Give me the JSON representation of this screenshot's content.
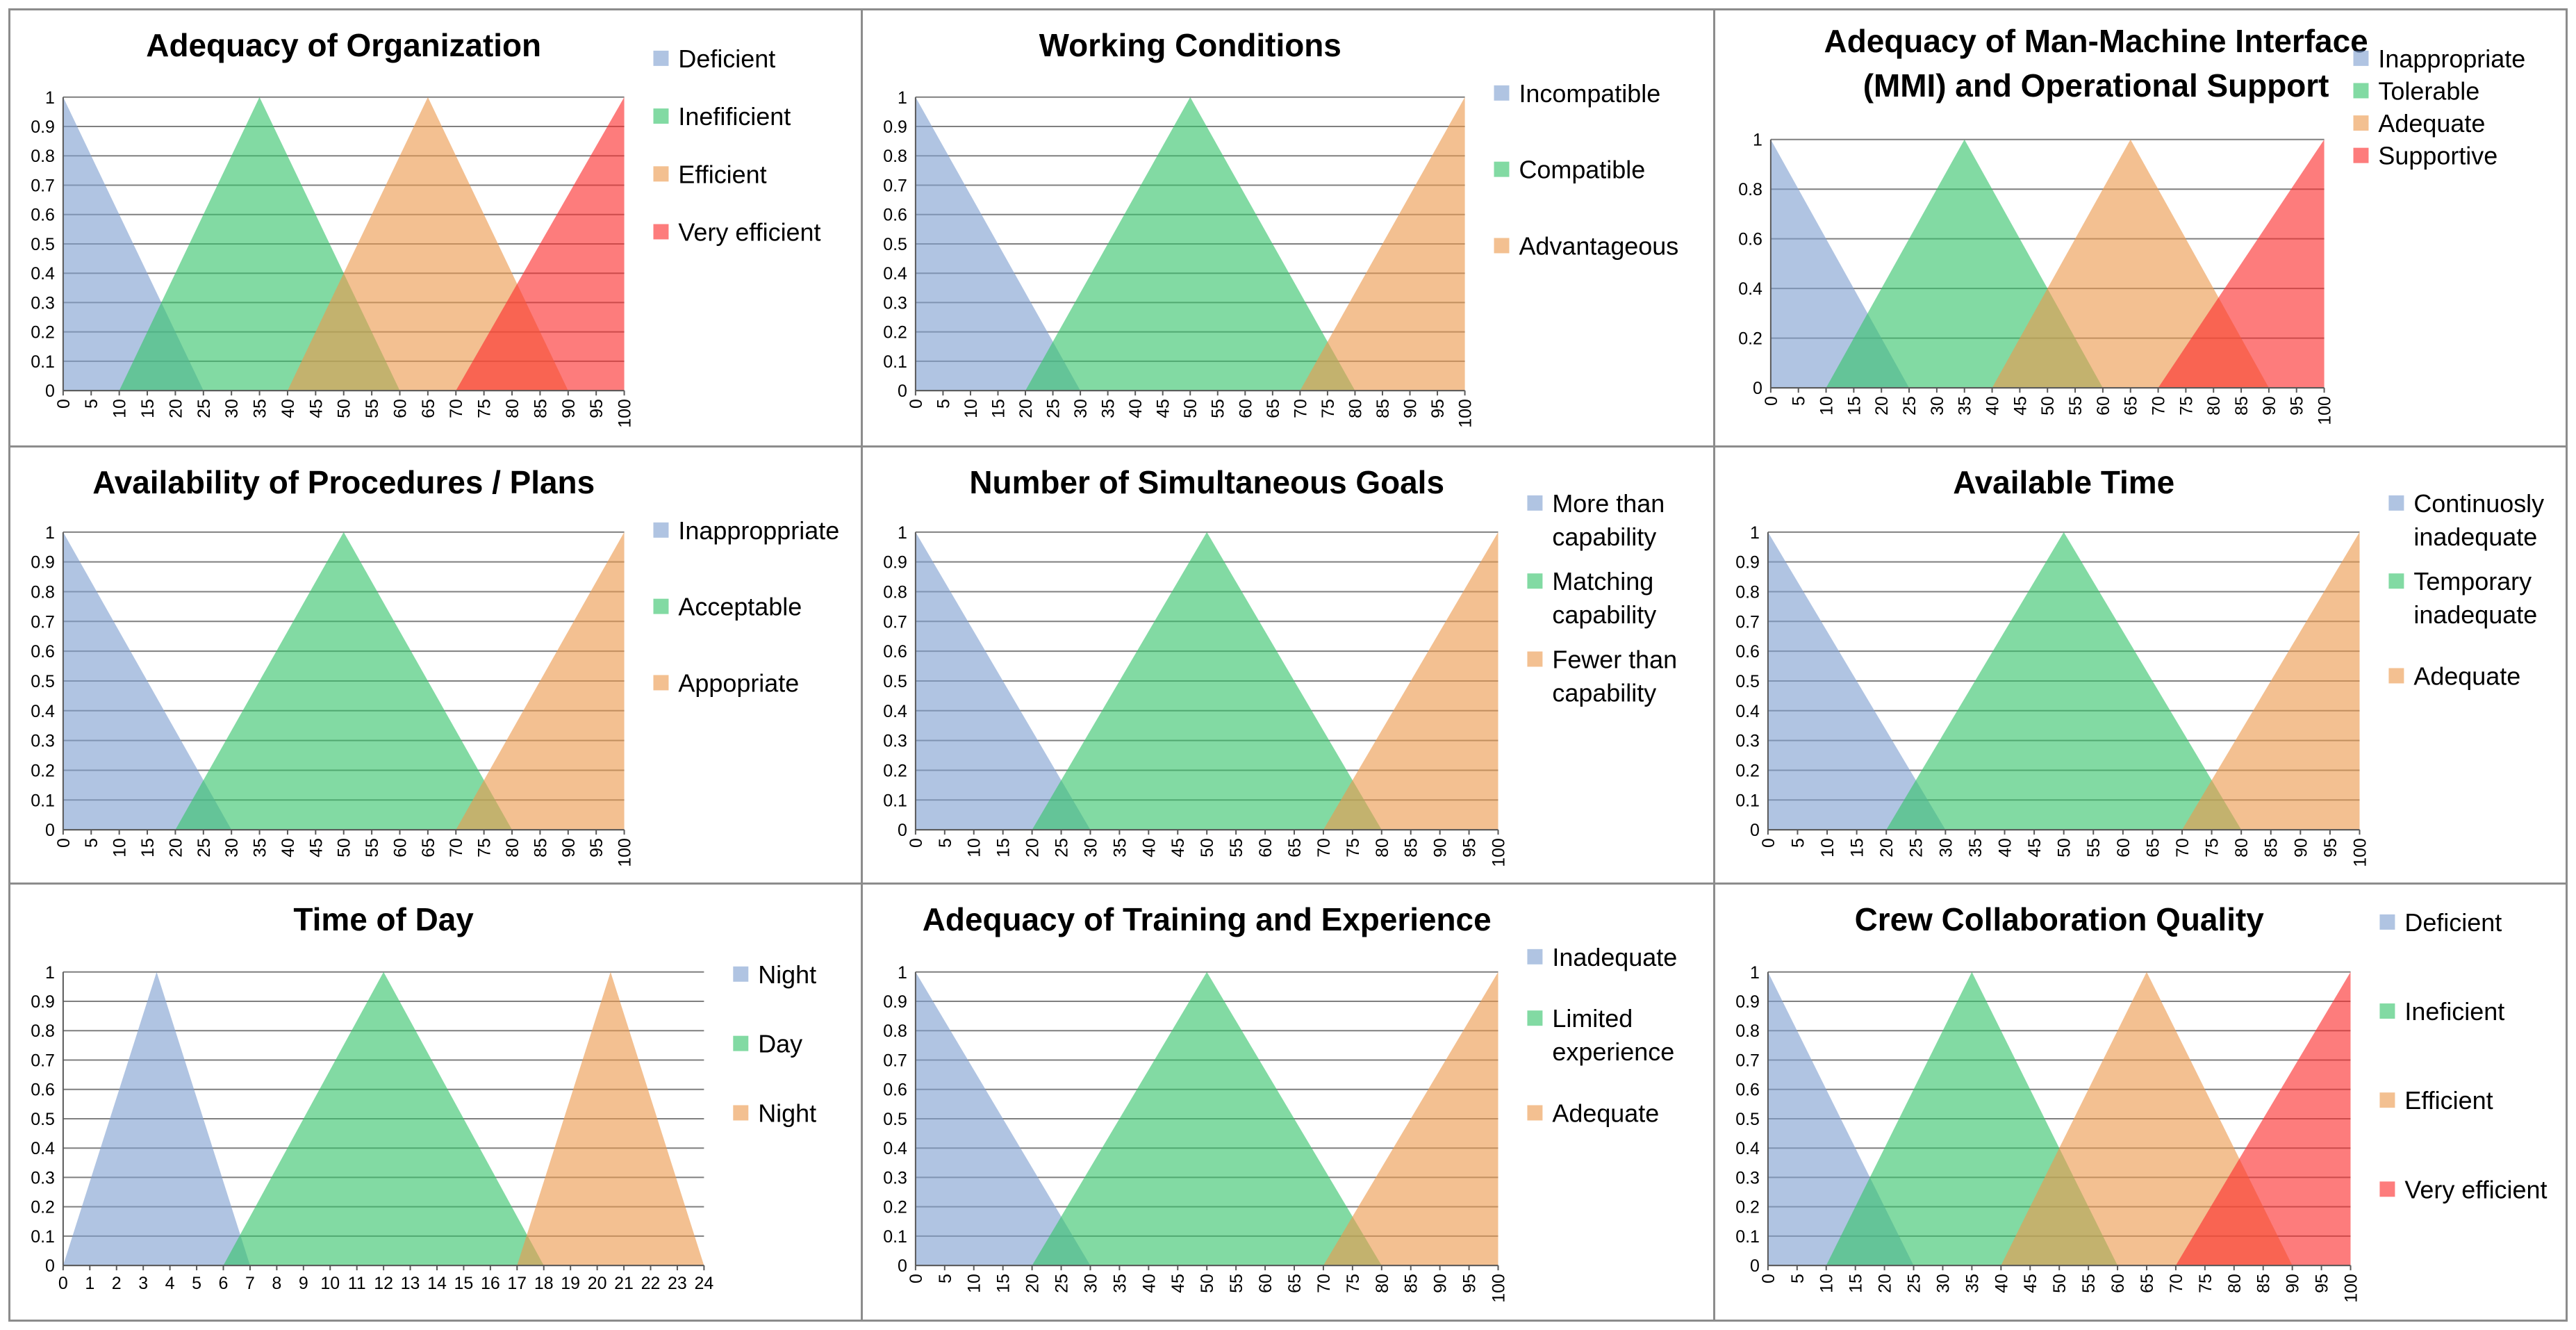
{
  "colors": {
    "blue": "#7f9fd0",
    "green": "#35c46a",
    "orange": "#ec9a4e",
    "red": "#fb2b2b",
    "grid": "#7f7f7f",
    "axis": "#595959"
  },
  "chart_data": [
    {
      "type": "area",
      "title": [
        "Adequacy of Organization"
      ],
      "xlim": [
        0,
        100
      ],
      "xticks_step": 5,
      "yticks": [
        "0",
        "0.1",
        "0.2",
        "0.3",
        "0.4",
        "0.5",
        "0.6",
        "0.7",
        "0.8",
        "0.9",
        "1"
      ],
      "series": [
        {
          "name": [
            "Deficient"
          ],
          "color": "blue",
          "points": [
            [
              0,
              1
            ],
            [
              25,
              0
            ],
            [
              0,
              0
            ]
          ]
        },
        {
          "name": [
            "Inefificient"
          ],
          "color": "green",
          "points": [
            [
              10,
              0
            ],
            [
              35,
              1
            ],
            [
              60,
              0
            ]
          ]
        },
        {
          "name": [
            "Efficient"
          ],
          "color": "orange",
          "points": [
            [
              40,
              0
            ],
            [
              65,
              1
            ],
            [
              90,
              0
            ]
          ]
        },
        {
          "name": [
            "Very efficient"
          ],
          "color": "red",
          "points": [
            [
              70,
              0
            ],
            [
              100,
              1
            ],
            [
              100,
              0
            ]
          ]
        }
      ]
    },
    {
      "type": "area",
      "title": [
        "Working Conditions"
      ],
      "xlim": [
        0,
        100
      ],
      "xticks_step": 5,
      "yticks": [
        "0",
        "0.1",
        "0.2",
        "0.3",
        "0.4",
        "0.5",
        "0.6",
        "0.7",
        "0.8",
        "0.9",
        "1"
      ],
      "series": [
        {
          "name": [
            "Incompatible"
          ],
          "color": "blue",
          "points": [
            [
              0,
              1
            ],
            [
              30,
              0
            ],
            [
              0,
              0
            ]
          ]
        },
        {
          "name": [
            "Compatible"
          ],
          "color": "green",
          "points": [
            [
              20,
              0
            ],
            [
              50,
              1
            ],
            [
              80,
              0
            ]
          ]
        },
        {
          "name": [
            "Advantageous"
          ],
          "color": "orange",
          "points": [
            [
              70,
              0
            ],
            [
              100,
              1
            ],
            [
              100,
              0
            ]
          ]
        }
      ]
    },
    {
      "type": "area",
      "title": [
        "Adequacy of Man-Machine Interface",
        "(MMI) and Operational Support"
      ],
      "xlim": [
        0,
        100
      ],
      "xticks_step": 5,
      "yticks": [
        "0",
        "0.2",
        "0.4",
        "0.6",
        "0.8",
        "1"
      ],
      "series": [
        {
          "name": [
            "Inappropriate"
          ],
          "color": "blue",
          "points": [
            [
              0,
              1
            ],
            [
              25,
              0
            ],
            [
              0,
              0
            ]
          ]
        },
        {
          "name": [
            "Tolerable"
          ],
          "color": "green",
          "points": [
            [
              10,
              0
            ],
            [
              35,
              1
            ],
            [
              60,
              0
            ]
          ]
        },
        {
          "name": [
            "Adequate"
          ],
          "color": "orange",
          "points": [
            [
              40,
              0
            ],
            [
              65,
              1
            ],
            [
              90,
              0
            ]
          ]
        },
        {
          "name": [
            "Supportive"
          ],
          "color": "red",
          "points": [
            [
              70,
              0
            ],
            [
              100,
              1
            ],
            [
              100,
              0
            ]
          ]
        }
      ]
    },
    {
      "type": "area",
      "title": [
        "Availability of Procedures / Plans"
      ],
      "xlim": [
        0,
        100
      ],
      "xticks_step": 5,
      "yticks": [
        "0",
        "0.1",
        "0.2",
        "0.3",
        "0.4",
        "0.5",
        "0.6",
        "0.7",
        "0.8",
        "0.9",
        "1"
      ],
      "series": [
        {
          "name": [
            "Inapproppriate"
          ],
          "color": "blue",
          "points": [
            [
              0,
              1
            ],
            [
              30,
              0
            ],
            [
              0,
              0
            ]
          ]
        },
        {
          "name": [
            "Acceptable"
          ],
          "color": "green",
          "points": [
            [
              20,
              0
            ],
            [
              50,
              1
            ],
            [
              80,
              0
            ]
          ]
        },
        {
          "name": [
            "Appopriate"
          ],
          "color": "orange",
          "points": [
            [
              70,
              0
            ],
            [
              100,
              1
            ],
            [
              100,
              0
            ]
          ]
        }
      ]
    },
    {
      "type": "area",
      "title": [
        "Number of Simultaneous Goals"
      ],
      "xlim": [
        0,
        100
      ],
      "xticks_step": 5,
      "yticks": [
        "0",
        "0.1",
        "0.2",
        "0.3",
        "0.4",
        "0.5",
        "0.6",
        "0.7",
        "0.8",
        "0.9",
        "1"
      ],
      "series": [
        {
          "name": [
            "More than",
            "capability"
          ],
          "color": "blue",
          "points": [
            [
              0,
              1
            ],
            [
              30,
              0
            ],
            [
              0,
              0
            ]
          ]
        },
        {
          "name": [
            "Matching",
            "capability"
          ],
          "color": "green",
          "points": [
            [
              20,
              0
            ],
            [
              50,
              1
            ],
            [
              80,
              0
            ]
          ]
        },
        {
          "name": [
            "Fewer than",
            "capability"
          ],
          "color": "orange",
          "points": [
            [
              70,
              0
            ],
            [
              100,
              1
            ],
            [
              100,
              0
            ]
          ]
        }
      ]
    },
    {
      "type": "area",
      "title": [
        "Available Time"
      ],
      "xlim": [
        0,
        100
      ],
      "xticks_step": 5,
      "yticks": [
        "0",
        "0.1",
        "0.2",
        "0.3",
        "0.4",
        "0.5",
        "0.6",
        "0.7",
        "0.8",
        "0.9",
        "1"
      ],
      "series": [
        {
          "name": [
            "Continuosly",
            "inadequate"
          ],
          "color": "blue",
          "points": [
            [
              0,
              1
            ],
            [
              30,
              0
            ],
            [
              0,
              0
            ]
          ]
        },
        {
          "name": [
            "Temporary",
            "inadequate"
          ],
          "color": "green",
          "points": [
            [
              20,
              0
            ],
            [
              50,
              1
            ],
            [
              80,
              0
            ]
          ]
        },
        {
          "name": [
            "Adequate"
          ],
          "color": "orange",
          "points": [
            [
              70,
              0
            ],
            [
              100,
              1
            ],
            [
              100,
              0
            ]
          ]
        }
      ]
    },
    {
      "type": "area",
      "title": [
        "Time of Day"
      ],
      "xlim": [
        0,
        24
      ],
      "xticks_step": 1,
      "yticks": [
        "0",
        "0.1",
        "0.2",
        "0.3",
        "0.4",
        "0.5",
        "0.6",
        "0.7",
        "0.8",
        "0.9",
        "1"
      ],
      "series": [
        {
          "name": [
            "Night"
          ],
          "color": "blue",
          "points": [
            [
              0,
              0
            ],
            [
              3.5,
              1
            ],
            [
              7,
              0
            ]
          ]
        },
        {
          "name": [
            "Day"
          ],
          "color": "green",
          "points": [
            [
              6,
              0
            ],
            [
              12,
              1
            ],
            [
              18,
              0
            ]
          ]
        },
        {
          "name": [
            "Night"
          ],
          "color": "orange",
          "points": [
            [
              17,
              0
            ],
            [
              20.5,
              1
            ],
            [
              24,
              0
            ]
          ]
        }
      ]
    },
    {
      "type": "area",
      "title": [
        "Adequacy of Training and Experience"
      ],
      "xlim": [
        0,
        100
      ],
      "xticks_step": 5,
      "yticks": [
        "0",
        "0.1",
        "0.2",
        "0.3",
        "0.4",
        "0.5",
        "0.6",
        "0.7",
        "0.8",
        "0.9",
        "1"
      ],
      "series": [
        {
          "name": [
            "Inadequate"
          ],
          "color": "blue",
          "points": [
            [
              0,
              1
            ],
            [
              30,
              0
            ],
            [
              0,
              0
            ]
          ]
        },
        {
          "name": [
            "Limited",
            "experience"
          ],
          "color": "green",
          "points": [
            [
              20,
              0
            ],
            [
              50,
              1
            ],
            [
              80,
              0
            ]
          ]
        },
        {
          "name": [
            "Adequate"
          ],
          "color": "orange",
          "points": [
            [
              70,
              0
            ],
            [
              100,
              1
            ],
            [
              100,
              0
            ]
          ]
        }
      ]
    },
    {
      "type": "area",
      "title": [
        "Crew Collaboration Quality"
      ],
      "xlim": [
        0,
        100
      ],
      "xticks_step": 5,
      "yticks": [
        "0",
        "0.1",
        "0.2",
        "0.3",
        "0.4",
        "0.5",
        "0.6",
        "0.7",
        "0.8",
        "0.9",
        "1"
      ],
      "series": [
        {
          "name": [
            "Deficient"
          ],
          "color": "blue",
          "points": [
            [
              0,
              1
            ],
            [
              25,
              0
            ],
            [
              0,
              0
            ]
          ]
        },
        {
          "name": [
            "Ineficient"
          ],
          "color": "green",
          "points": [
            [
              10,
              0
            ],
            [
              35,
              1
            ],
            [
              60,
              0
            ]
          ]
        },
        {
          "name": [
            "Efficient"
          ],
          "color": "orange",
          "points": [
            [
              40,
              0
            ],
            [
              65,
              1
            ],
            [
              90,
              0
            ]
          ]
        },
        {
          "name": [
            "Very efficient"
          ],
          "color": "red",
          "points": [
            [
              70,
              0
            ],
            [
              100,
              1
            ],
            [
              100,
              0
            ]
          ]
        }
      ]
    }
  ]
}
